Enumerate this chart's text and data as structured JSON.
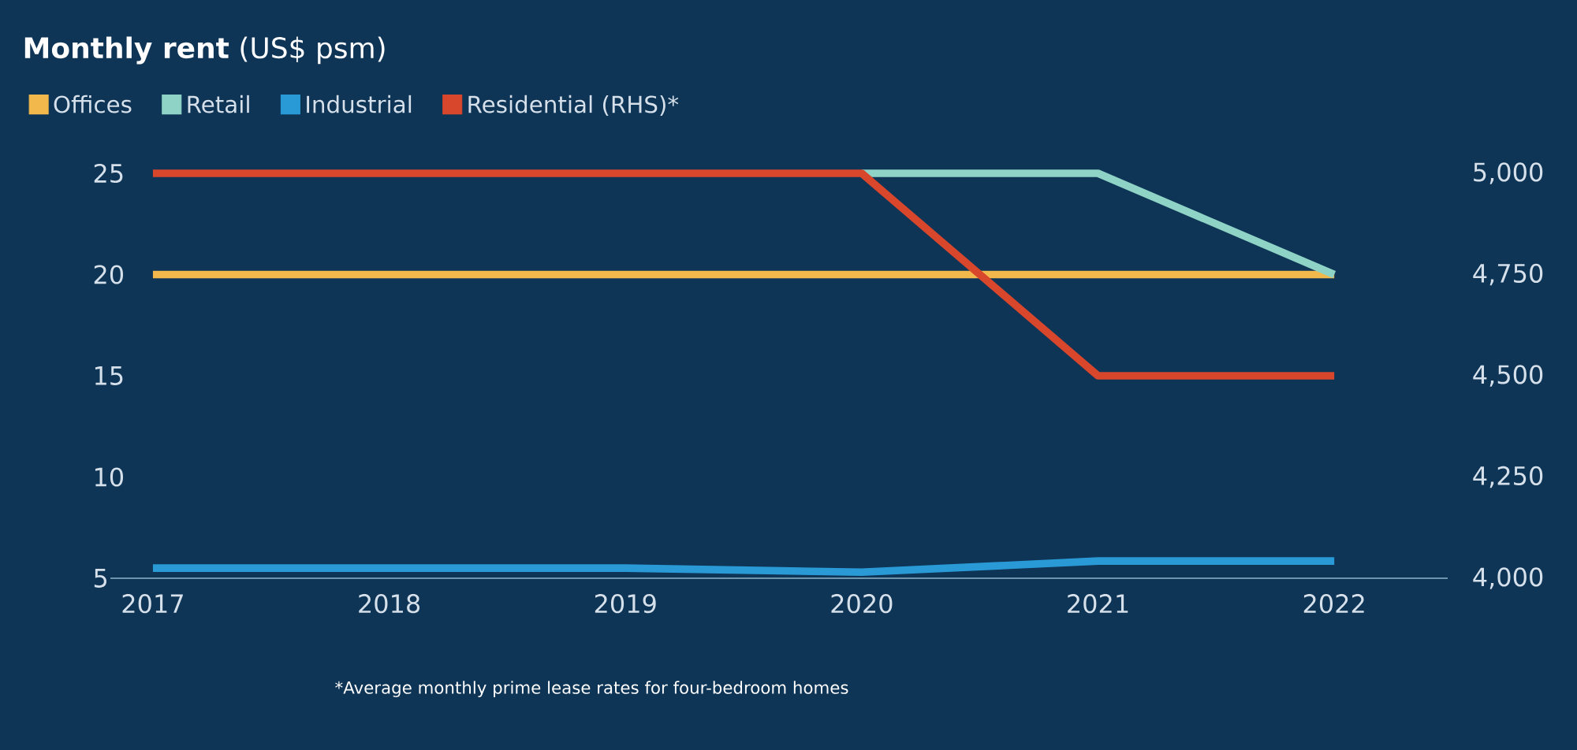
{
  "chart_data": {
    "type": "line",
    "title": "**Monthly rent** (US$ psm)",
    "categories": [
      "2017",
      "2018",
      "2019",
      "2020",
      "2021",
      "2022"
    ],
    "series": [
      {
        "name": "Offices",
        "color": "#f2b84b",
        "values": [
          20,
          20,
          20,
          20,
          20,
          20
        ]
      },
      {
        "name": "Retail",
        "color": "#8fd3c6",
        "values": [
          null,
          null,
          null,
          25,
          25,
          20
        ]
      },
      {
        "name": "Industrial",
        "color": "#2a9ad6",
        "values": [
          5.5,
          5.5,
          5.5,
          5.3,
          5.85,
          5.85
        ]
      },
      {
        "name": "Residential (RHS)*",
        "color": "#d8462c",
        "axis": "y2",
        "values": [
          5000,
          5000,
          5000,
          5000,
          4500,
          4500
        ]
      }
    ],
    "ylim": [
      5,
      25
    ],
    "yticks": [
      5,
      10,
      15,
      20,
      25
    ],
    "y2lim": [
      4000,
      5000
    ],
    "y2ticks": [
      {
        "value": 4000,
        "label": "4,000"
      },
      {
        "value": 4250,
        "label": "4,250"
      },
      {
        "value": 4500,
        "label": "4,500"
      },
      {
        "value": 4750,
        "label": "4,750"
      },
      {
        "value": 5000,
        "label": "5,000"
      }
    ],
    "legend": "top left",
    "marker": "none",
    "line_style": "solid",
    "annotations": [
      "*Average monthly prime lease rates for four-bedroom homes"
    ]
  }
}
